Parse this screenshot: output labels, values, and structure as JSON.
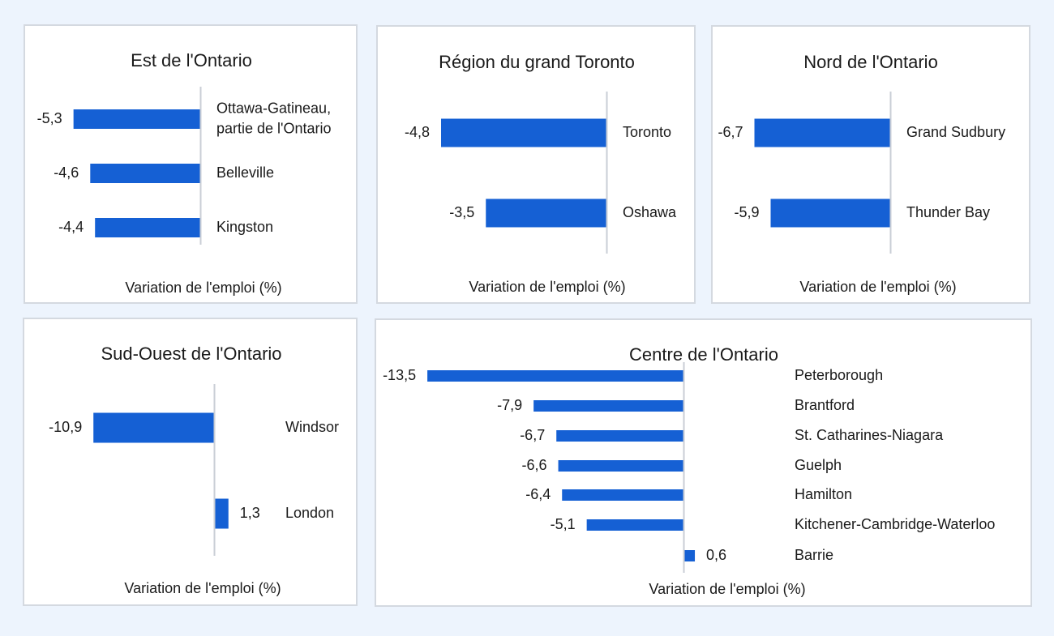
{
  "chart_data": [
    {
      "type": "bar",
      "orientation": "horizontal",
      "title": "Est de l'Ontario",
      "xlabel": "Variation de l'emploi (%)",
      "categories": [
        "Ottawa-Gatineau, partie de l'Ontario",
        "Belleville",
        "Kingston"
      ],
      "category_lines": [
        [
          "Ottawa-Gatineau,",
          "partie de l'Ontario"
        ],
        [
          "Belleville"
        ],
        [
          "Kingston"
        ]
      ],
      "values": [
        -5.3,
        -4.6,
        -4.4
      ],
      "value_labels": [
        "-5,3",
        "-4,6",
        "-4,4"
      ],
      "color": "#1560d4"
    },
    {
      "type": "bar",
      "orientation": "horizontal",
      "title": "Région du grand Toronto",
      "xlabel": "Variation de l'emploi (%)",
      "categories": [
        "Toronto",
        "Oshawa"
      ],
      "category_lines": [
        [
          "Toronto"
        ],
        [
          "Oshawa"
        ]
      ],
      "values": [
        -4.8,
        -3.5
      ],
      "value_labels": [
        "-4,8",
        "-3,5"
      ],
      "color": "#1560d4"
    },
    {
      "type": "bar",
      "orientation": "horizontal",
      "title": "Nord de l'Ontario",
      "xlabel": "Variation de l'emploi (%)",
      "categories": [
        "Grand Sudbury",
        "Thunder Bay"
      ],
      "category_lines": [
        [
          "Grand Sudbury"
        ],
        [
          "Thunder Bay"
        ]
      ],
      "values": [
        -6.7,
        -5.9
      ],
      "value_labels": [
        "-6,7",
        "-5,9"
      ],
      "color": "#1560d4"
    },
    {
      "type": "bar",
      "orientation": "horizontal",
      "title": "Sud-Ouest de l'Ontario",
      "xlabel": "Variation de l'emploi (%)",
      "categories": [
        "Windsor",
        "London"
      ],
      "category_lines": [
        [
          "Windsor"
        ],
        [
          "London"
        ]
      ],
      "values": [
        -10.9,
        1.3
      ],
      "value_labels": [
        "-10,9",
        "1,3"
      ],
      "color": "#1560d4"
    },
    {
      "type": "bar",
      "orientation": "horizontal",
      "title": "Centre de l'Ontario",
      "xlabel": "Variation de l'emploi (%)",
      "categories": [
        "Peterborough",
        "Brantford",
        "St. Catharines-Niagara",
        "Guelph",
        "Hamilton",
        "Kitchener-Cambridge-Waterloo",
        "Barrie"
      ],
      "category_lines": [
        [
          "Peterborough"
        ],
        [
          "Brantford"
        ],
        [
          "St. Catharines-Niagara"
        ],
        [
          "Guelph"
        ],
        [
          "Hamilton"
        ],
        [
          "Kitchener-Cambridge-Waterloo"
        ],
        [
          "Barrie"
        ]
      ],
      "values": [
        -13.5,
        -7.9,
        -6.7,
        -6.6,
        -6.4,
        -5.1,
        0.6
      ],
      "value_labels": [
        "-13,5",
        "-7,9",
        "-6,7",
        "-6,6",
        "-6,4",
        "-5,1",
        "0,6"
      ],
      "color": "#1560d4"
    }
  ]
}
